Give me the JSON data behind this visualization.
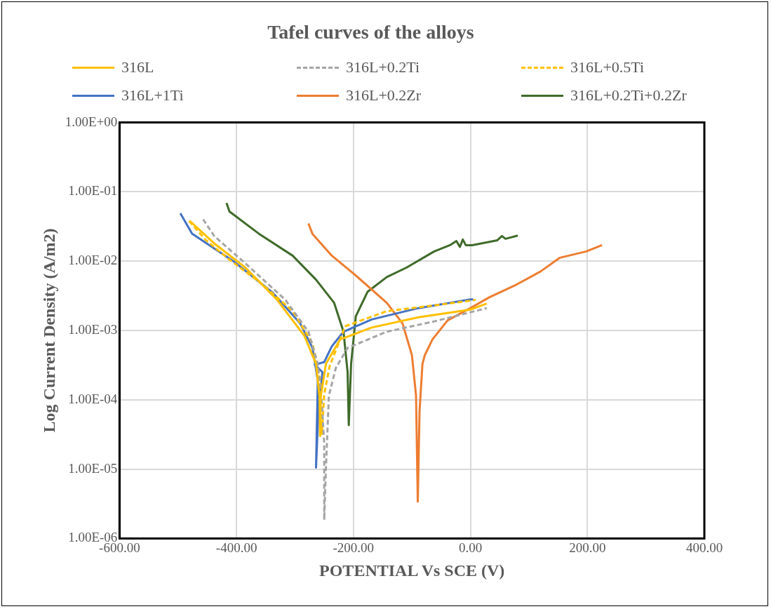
{
  "chart_data": {
    "type": "line",
    "title": "Tafel curves of the alloys",
    "xlabel": "POTENTIAL Vs SCE (V)",
    "ylabel": "Log Current Density (A/m2)",
    "log": "y",
    "grid": true,
    "legend": "top",
    "marker": "none",
    "xlim": [
      -600,
      400
    ],
    "xticks": [
      {
        "value": -600,
        "label": "-600.00"
      },
      {
        "value": -400,
        "label": "-400.00"
      },
      {
        "value": -200,
        "label": "-200.00"
      },
      {
        "value": 0,
        "label": "0.00"
      },
      {
        "value": 200,
        "label": "200.00"
      },
      {
        "value": 400,
        "label": "400.00"
      }
    ],
    "ylim": [
      1e-06,
      1
    ],
    "yticks": [
      {
        "value": 1e-06,
        "label": "1.00E-06"
      },
      {
        "value": 1e-05,
        "label": "1.00E-05"
      },
      {
        "value": 0.0001,
        "label": "1.00E-04"
      },
      {
        "value": 0.001,
        "label": "1.00E-03"
      },
      {
        "value": 0.01,
        "label": "1.00E-02"
      },
      {
        "value": 0.1,
        "label": "1.00E-01"
      },
      {
        "value": 1,
        "label": "1.00E+00"
      }
    ],
    "series": [
      {
        "name": "316L",
        "color": "#ffc000",
        "line_style": "solid",
        "x": [
          -480,
          -438,
          -385,
          -331,
          -284,
          -264,
          -258,
          -257,
          -256,
          -247,
          -223,
          -169,
          -89,
          0,
          28
        ],
        "values": [
          0.038,
          0.018,
          0.0081,
          0.0028,
          0.00084,
          0.00033,
          0.00011,
          3e-05,
          0.00011,
          0.00033,
          0.00074,
          0.0011,
          0.00155,
          0.002,
          0.00245
        ]
      },
      {
        "name": "316L+0.2Ti",
        "color": "#a5a5a5",
        "line_style": "dashed",
        "x": [
          -457,
          -438,
          -385,
          -317,
          -277,
          -261,
          -254,
          -250,
          -250,
          -247,
          -242,
          -230,
          -210,
          -143,
          -62,
          28
        ],
        "values": [
          0.04,
          0.023,
          0.0093,
          0.0028,
          0.00096,
          0.00033,
          8.7e-05,
          2.3e-05,
          1.85e-06,
          1.05e-05,
          0.000115,
          0.00029,
          0.00056,
          0.00096,
          0.00135,
          0.0021
        ]
      },
      {
        "name": "316L+0.5Ti",
        "color": "#ffc000",
        "line_style": "dashed",
        "x": [
          -481,
          -452,
          -412,
          -358,
          -304,
          -270,
          -257,
          -254,
          -254,
          -250,
          -241,
          -214,
          -143,
          -62,
          9
        ],
        "values": [
          0.038,
          0.02,
          0.0105,
          0.0048,
          0.0019,
          0.00065,
          0.00019,
          6.8e-05,
          3.2e-05,
          0.00012,
          0.0003,
          0.00115,
          0.0019,
          0.0023,
          0.00275
        ]
      },
      {
        "name": "316L+1Ti",
        "color": "#4472c4",
        "line_style": "solid",
        "x": [
          -496,
          -476,
          -404,
          -338,
          -291,
          -270,
          -261,
          -264,
          -260,
          -253,
          -266,
          -250,
          -237,
          -217,
          -169,
          -89,
          0,
          5
        ],
        "values": [
          0.049,
          0.025,
          0.0098,
          0.0035,
          0.00126,
          0.00056,
          0.00019,
          1.05e-05,
          6.7e-05,
          0.00025,
          0.00032,
          0.00035,
          0.00059,
          0.00096,
          0.00144,
          0.0021,
          0.0028,
          0.0028
        ]
      },
      {
        "name": "316L+0.2Zr",
        "color": "#ed7d31",
        "line_style": "solid",
        "x": [
          -277,
          -270,
          -237,
          -196,
          -143,
          -116,
          -100,
          -93,
          -90,
          -87,
          -82,
          -78,
          -65,
          -39,
          0,
          32,
          79,
          120,
          153,
          198,
          225
        ],
        "values": [
          0.035,
          0.0246,
          0.012,
          0.0062,
          0.0025,
          0.00126,
          0.00044,
          0.000115,
          3.4e-06,
          6.8e-05,
          0.00033,
          0.00044,
          0.00074,
          0.0014,
          0.0021,
          0.003,
          0.0046,
          0.0071,
          0.0112,
          0.0138,
          0.017
        ]
      },
      {
        "name": "316L+0.2Ti+0.2Zr",
        "color": "#3f6b2a",
        "line_style": "solid",
        "x": [
          -417,
          -412,
          -362,
          -304,
          -264,
          -233,
          -217,
          -210,
          -208,
          -204,
          -196,
          -176,
          -143,
          -109,
          -62,
          -35,
          -24,
          -18,
          -13,
          -8,
          3,
          46,
          54,
          60,
          81
        ],
        "values": [
          0.069,
          0.052,
          0.025,
          0.012,
          0.0054,
          0.0025,
          0.00096,
          0.00025,
          4.3e-05,
          0.00033,
          0.0016,
          0.0036,
          0.0059,
          0.0081,
          0.0138,
          0.017,
          0.0195,
          0.016,
          0.0205,
          0.017,
          0.017,
          0.02,
          0.023,
          0.021,
          0.0234
        ]
      }
    ]
  }
}
